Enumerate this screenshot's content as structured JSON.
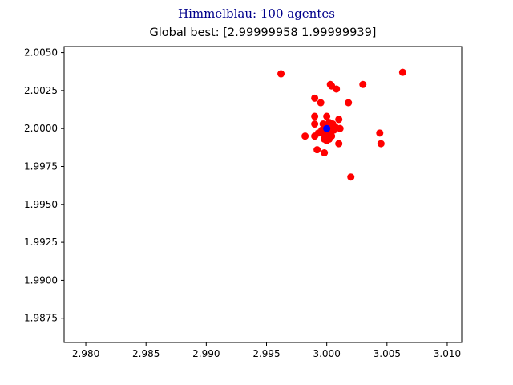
{
  "figure_title": "Himmelblau: 100 agentes",
  "chart_data": {
    "type": "scatter",
    "title": "Global best: [2.99999958 1.99999939]",
    "xlabel": "",
    "ylabel": "",
    "xlim": [
      2.9782,
      3.0112
    ],
    "ylim": [
      1.9859,
      2.0054
    ],
    "xticks": [
      "2.980",
      "2.985",
      "2.990",
      "2.995",
      "3.000",
      "3.005",
      "3.010"
    ],
    "yticks": [
      "1.9875",
      "1.9900",
      "1.9925",
      "1.9950",
      "1.9975",
      "2.0000",
      "2.0025",
      "2.0050"
    ],
    "grid": false,
    "series": [
      {
        "color": "#ff0000",
        "marker": "circle",
        "points": [
          [
            2.9962,
            2.0036
          ],
          [
            3.0063,
            2.0037
          ],
          [
            3.0003,
            2.0029
          ],
          [
            3.0004,
            2.0028
          ],
          [
            3.003,
            2.0029
          ],
          [
            3.0008,
            2.0026
          ],
          [
            2.999,
            2.002
          ],
          [
            2.9995,
            2.0017
          ],
          [
            3.0018,
            2.0017
          ],
          [
            2.999,
            2.0008
          ],
          [
            3.0,
            2.0008
          ],
          [
            3.001,
            2.0006
          ],
          [
            2.999,
            2.0003
          ],
          [
            2.9997,
            2.0003
          ],
          [
            3.0002,
            2.0004
          ],
          [
            3.0005,
            2.0003
          ],
          [
            3.0007,
            2.0001
          ],
          [
            3.0011,
            2.0
          ],
          [
            3.0,
            2.0001
          ],
          [
            3.0003,
            2.0
          ],
          [
            2.9996,
            1.9999
          ],
          [
            3.0002,
            1.9998
          ],
          [
            3.0006,
            1.9999
          ],
          [
            2.9993,
            1.9997
          ],
          [
            2.9998,
            1.9996
          ],
          [
            3.0001,
            1.9996
          ],
          [
            2.999,
            1.9995
          ],
          [
            2.9982,
            1.9995
          ],
          [
            3.0004,
            1.9995
          ],
          [
            2.9998,
            1.9993
          ],
          [
            3.0,
            1.9992
          ],
          [
            3.0002,
            1.9993
          ],
          [
            3.0044,
            1.9997
          ],
          [
            3.0045,
            1.999
          ],
          [
            3.001,
            1.999
          ],
          [
            2.9992,
            1.9986
          ],
          [
            2.9998,
            1.9984
          ],
          [
            3.002,
            1.9968
          ]
        ]
      },
      {
        "color": "#0000ff",
        "marker": "circle",
        "points": [
          [
            2.99999958,
            1.99999939
          ]
        ]
      }
    ]
  }
}
